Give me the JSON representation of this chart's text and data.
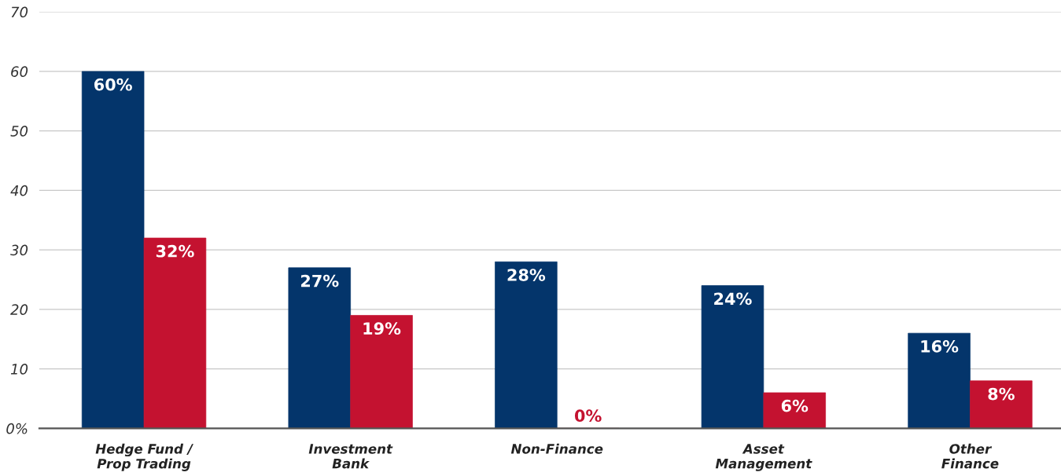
{
  "chart_data": {
    "type": "bar",
    "categories": [
      "Hedge Fund /\nProp Trading",
      "Investment\nBank",
      "Non-Finance",
      "Asset\nManagement",
      "Other\nFinance"
    ],
    "series": [
      {
        "color": "#04356b",
        "values": [
          60,
          27,
          28,
          24,
          16
        ],
        "value_labels": [
          "60%",
          "27%",
          "28%",
          "24%",
          "16%"
        ]
      },
      {
        "color": "#c41230",
        "values": [
          32,
          19,
          0,
          6,
          8
        ],
        "value_labels": [
          "32%",
          "19%",
          "0%",
          "6%",
          "8%"
        ]
      }
    ],
    "ylim": [
      0,
      70
    ],
    "yticks": [
      {
        "value": 0,
        "label": "0%"
      },
      10,
      20,
      30,
      40,
      50,
      60,
      70
    ],
    "grid": "y",
    "legend": false
  }
}
